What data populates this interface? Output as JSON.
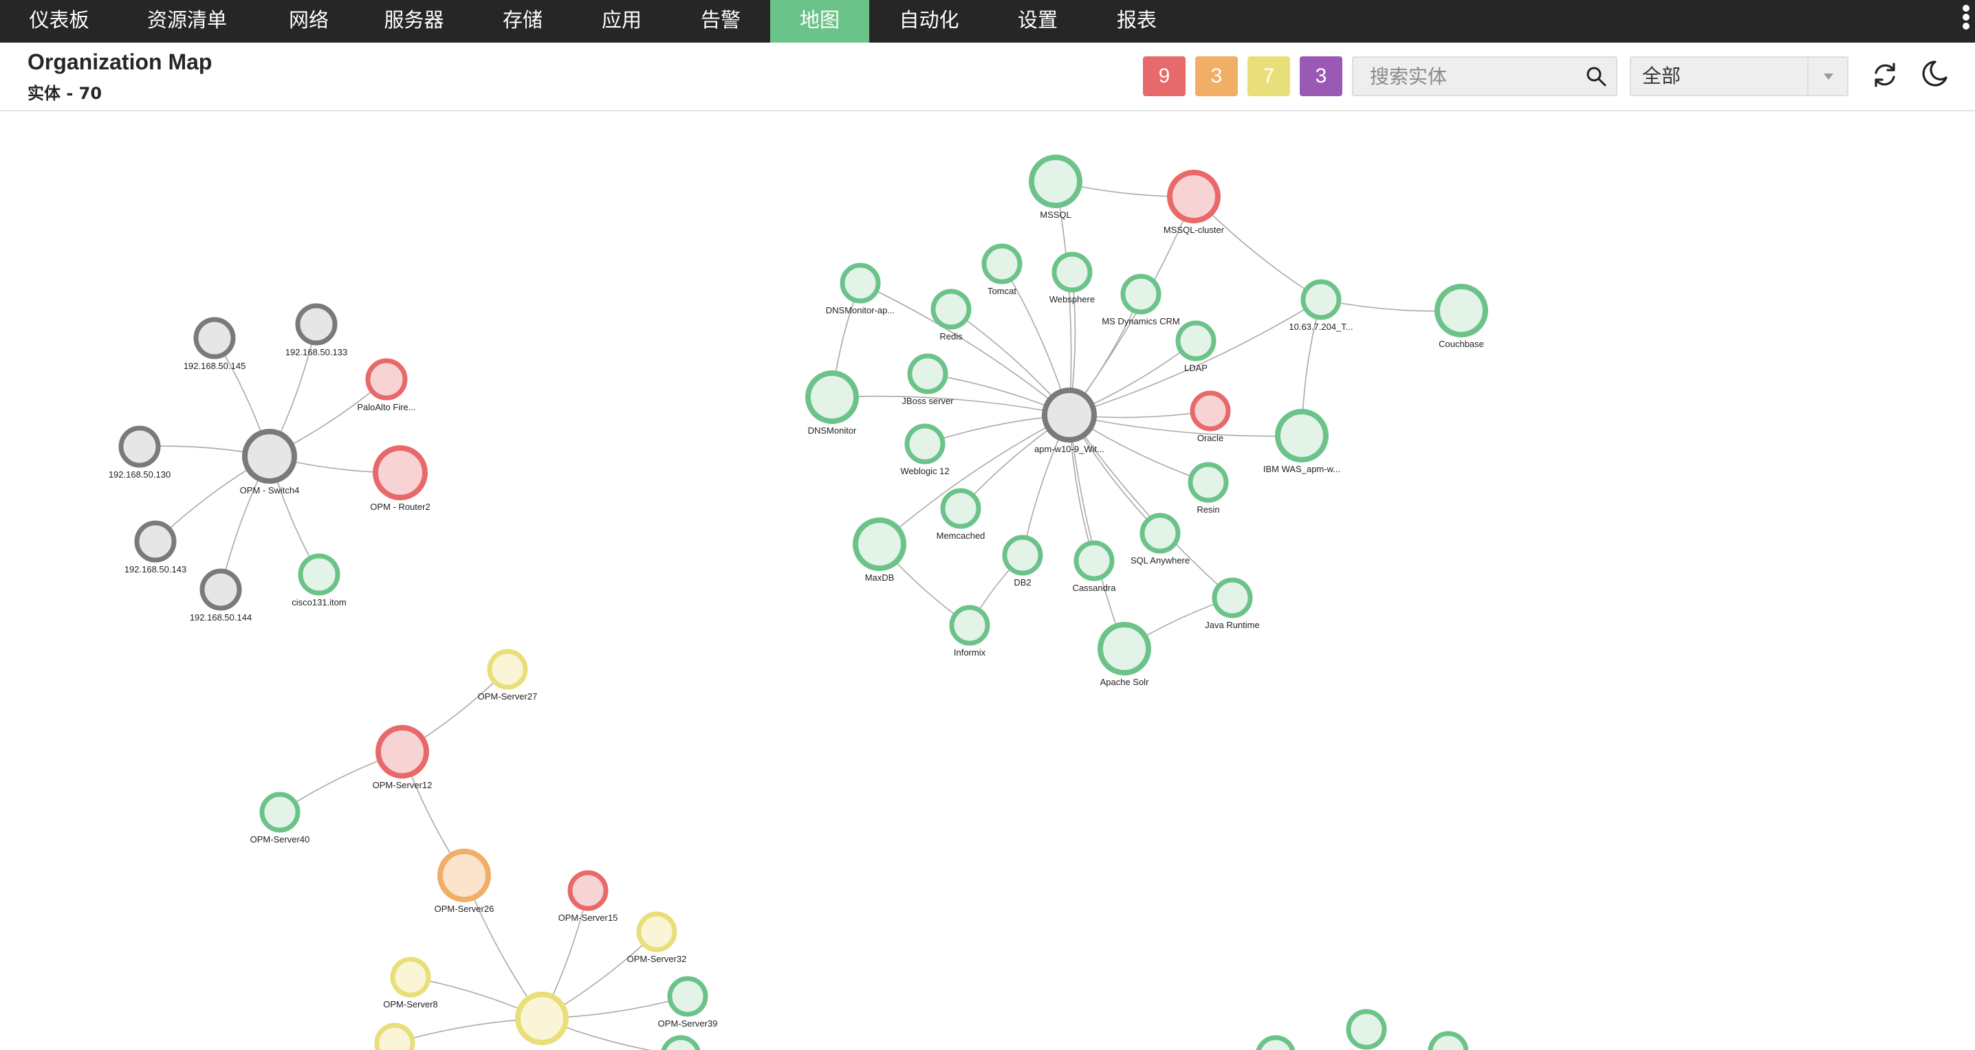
{
  "nav": {
    "items": [
      {
        "label": "仪表板",
        "active": false
      },
      {
        "label": "资源清单",
        "active": false
      },
      {
        "label": "网络",
        "active": false
      },
      {
        "label": "服务器",
        "active": false
      },
      {
        "label": "存储",
        "active": false
      },
      {
        "label": "应用",
        "active": false
      },
      {
        "label": "告警",
        "active": false
      },
      {
        "label": "地图",
        "active": true
      },
      {
        "label": "自动化",
        "active": false
      },
      {
        "label": "设置",
        "active": false
      },
      {
        "label": "报表",
        "active": false
      }
    ]
  },
  "header": {
    "title": "Organization Map",
    "entity_count": "实体 - 70"
  },
  "badges": [
    {
      "value": "9",
      "color": "#e8696a",
      "status": "critical"
    },
    {
      "value": "3",
      "color": "#f0ae66",
      "status": "trouble"
    },
    {
      "value": "7",
      "color": "#e9df7a",
      "status": "attention"
    },
    {
      "value": "3",
      "color": "#9b59b6",
      "status": "service-down"
    }
  ],
  "search": {
    "placeholder": "搜索实体",
    "value": ""
  },
  "filter": {
    "selected": "全部"
  },
  "icons": {
    "search": "search-icon",
    "refresh": "refresh-icon",
    "theme": "moon-icon",
    "dropdown": "chevron-down-icon",
    "menu": "kebab-menu-icon"
  },
  "status_colors": {
    "green": {
      "stroke": "#6cc38a",
      "fill": "#e4f3e8"
    },
    "red": {
      "stroke": "#e8696a",
      "fill": "#f8d3d3"
    },
    "orange": {
      "stroke": "#f0ae66",
      "fill": "#fbe3cc"
    },
    "yellow": {
      "stroke": "#e9df7a",
      "fill": "#faf5d6"
    },
    "gray": {
      "stroke": "#7a7a7a",
      "fill": "#e6e6e6"
    }
  },
  "map": {
    "nodes": [
      {
        "id": "switch4",
        "label": "OPM - Switch4",
        "status": "gray"
      },
      {
        "id": "n145",
        "label": "192.168.50.145",
        "status": "gray"
      },
      {
        "id": "n133",
        "label": "192.168.50.133",
        "status": "gray"
      },
      {
        "id": "paloalto",
        "label": "PaloAlto Fire...",
        "status": "red"
      },
      {
        "id": "router2",
        "label": "OPM - Router2",
        "status": "red"
      },
      {
        "id": "n130",
        "label": "192.168.50.130",
        "status": "gray"
      },
      {
        "id": "n143",
        "label": "192.168.50.143",
        "status": "gray"
      },
      {
        "id": "n144",
        "label": "192.168.50.144",
        "status": "gray"
      },
      {
        "id": "cisco",
        "label": "cisco131.itom",
        "status": "green"
      },
      {
        "id": "apm",
        "label": "apm-w10-9_Wit...",
        "status": "gray"
      },
      {
        "id": "mssql",
        "label": "MSSQL",
        "status": "green"
      },
      {
        "id": "mssqlc",
        "label": "MSSQL-cluster",
        "status": "red"
      },
      {
        "id": "tomcat",
        "label": "Tomcat",
        "status": "green"
      },
      {
        "id": "websphere",
        "label": "Websphere",
        "status": "green"
      },
      {
        "id": "dnsmonap",
        "label": "DNSMonitor-ap...",
        "status": "green"
      },
      {
        "id": "redis",
        "label": "Redis",
        "status": "green"
      },
      {
        "id": "msdyn",
        "label": "MS Dynamics CRM",
        "status": "green"
      },
      {
        "id": "ip204",
        "label": "10.63.7.204_T...",
        "status": "green"
      },
      {
        "id": "couchbase",
        "label": "Couchbase",
        "status": "green"
      },
      {
        "id": "ldap",
        "label": "LDAP",
        "status": "green"
      },
      {
        "id": "jboss",
        "label": "JBoss server",
        "status": "green"
      },
      {
        "id": "dnsmon",
        "label": "DNSMonitor",
        "status": "green"
      },
      {
        "id": "oracle",
        "label": "Oracle",
        "status": "red"
      },
      {
        "id": "ibmwas",
        "label": "IBM WAS_apm-w...",
        "status": "green"
      },
      {
        "id": "weblogic",
        "label": "Weblogic 12",
        "status": "green"
      },
      {
        "id": "resin",
        "label": "Resin",
        "status": "green"
      },
      {
        "id": "memcached",
        "label": "Memcached",
        "status": "green"
      },
      {
        "id": "sqlany",
        "label": "SQL Anywhere",
        "status": "green"
      },
      {
        "id": "maxdb",
        "label": "MaxDB",
        "status": "green"
      },
      {
        "id": "db2",
        "label": "DB2",
        "status": "green"
      },
      {
        "id": "cassandra",
        "label": "Cassandra",
        "status": "green"
      },
      {
        "id": "javart",
        "label": "Java Runtime",
        "status": "green"
      },
      {
        "id": "informix",
        "label": "Informix",
        "status": "green"
      },
      {
        "id": "solr",
        "label": "Apache Solr",
        "status": "green"
      },
      {
        "id": "s27",
        "label": "OPM-Server27",
        "status": "yellow"
      },
      {
        "id": "s12",
        "label": "OPM-Server12",
        "status": "red"
      },
      {
        "id": "s40",
        "label": "OPM-Server40",
        "status": "green"
      },
      {
        "id": "s26",
        "label": "OPM-Server26",
        "status": "orange"
      },
      {
        "id": "s15",
        "label": "OPM-Server15",
        "status": "red"
      },
      {
        "id": "s32",
        "label": "OPM-Server32",
        "status": "yellow"
      },
      {
        "id": "s8",
        "label": "OPM-Server8",
        "status": "yellow"
      },
      {
        "id": "s39",
        "label": "OPM-Server39",
        "status": "green"
      },
      {
        "id": "shub",
        "label": "",
        "status": "yellow"
      },
      {
        "id": "sbl",
        "label": "",
        "status": "yellow"
      },
      {
        "id": "sbr",
        "label": "",
        "status": "green"
      },
      {
        "id": "brA",
        "label": "",
        "status": "green"
      },
      {
        "id": "brB",
        "label": "",
        "status": "green"
      },
      {
        "id": "brC",
        "label": "",
        "status": "green"
      }
    ],
    "edges": [
      [
        "switch4",
        "n145"
      ],
      [
        "switch4",
        "n133"
      ],
      [
        "switch4",
        "paloalto"
      ],
      [
        "switch4",
        "router2"
      ],
      [
        "switch4",
        "n130"
      ],
      [
        "switch4",
        "n143"
      ],
      [
        "switch4",
        "n144"
      ],
      [
        "switch4",
        "cisco"
      ],
      [
        "apm",
        "mssql"
      ],
      [
        "apm",
        "mssqlc"
      ],
      [
        "apm",
        "tomcat"
      ],
      [
        "apm",
        "websphere"
      ],
      [
        "apm",
        "dnsmonap"
      ],
      [
        "apm",
        "redis"
      ],
      [
        "apm",
        "msdyn"
      ],
      [
        "apm",
        "ip204"
      ],
      [
        "apm",
        "ldap"
      ],
      [
        "apm",
        "jboss"
      ],
      [
        "apm",
        "dnsmon"
      ],
      [
        "apm",
        "oracle"
      ],
      [
        "apm",
        "ibmwas"
      ],
      [
        "apm",
        "weblogic"
      ],
      [
        "apm",
        "resin"
      ],
      [
        "apm",
        "memcached"
      ],
      [
        "apm",
        "sqlany"
      ],
      [
        "apm",
        "maxdb"
      ],
      [
        "apm",
        "db2"
      ],
      [
        "apm",
        "cassandra"
      ],
      [
        "apm",
        "javart"
      ],
      [
        "apm",
        "solr"
      ],
      [
        "mssql",
        "mssqlc"
      ],
      [
        "mssqlc",
        "ip204"
      ],
      [
        "ip204",
        "couchbase"
      ],
      [
        "ip204",
        "ibmwas"
      ],
      [
        "dnsmonap",
        "dnsmon"
      ],
      [
        "maxdb",
        "informix"
      ],
      [
        "db2",
        "informix"
      ],
      [
        "javart",
        "solr"
      ],
      [
        "s12",
        "s27"
      ],
      [
        "s12",
        "s40"
      ],
      [
        "s12",
        "s26"
      ],
      [
        "s26",
        "shub"
      ],
      [
        "shub",
        "s15"
      ],
      [
        "shub",
        "s32"
      ],
      [
        "shub",
        "s8"
      ],
      [
        "shub",
        "s39"
      ],
      [
        "shub",
        "sbl"
      ],
      [
        "shub",
        "sbr"
      ]
    ]
  }
}
